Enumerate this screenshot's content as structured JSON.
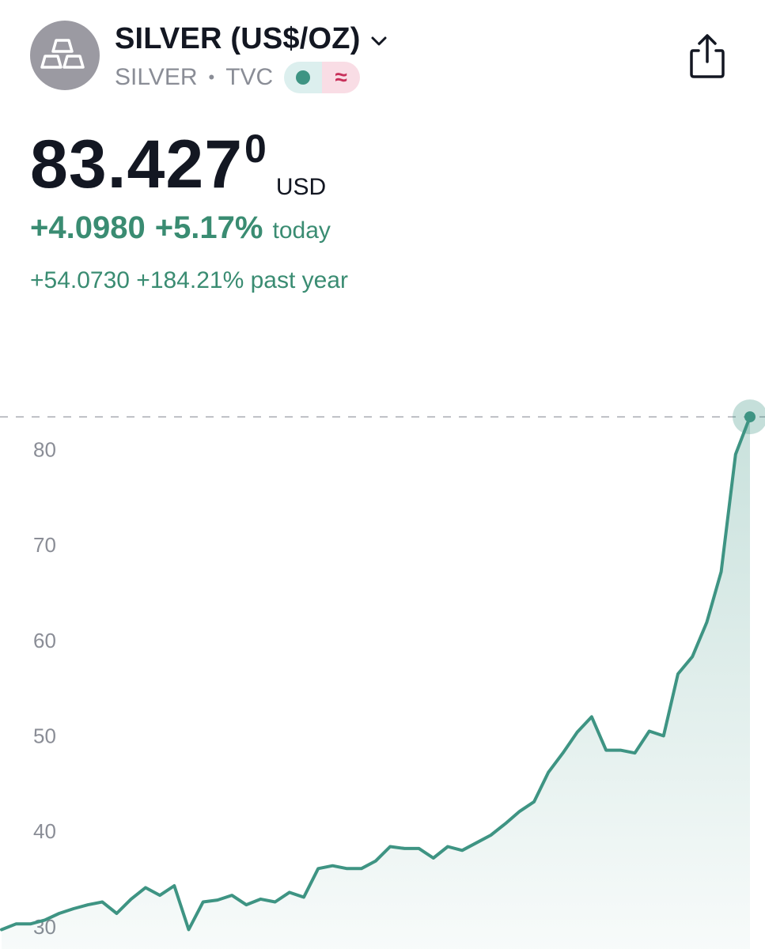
{
  "header": {
    "symbol_title": "SILVER (US$/OZ)",
    "ticker": "SILVER",
    "separator": "•",
    "exchange": "TVC",
    "wave_symbol": "≈"
  },
  "price": {
    "value": "83.427",
    "superscript": "0",
    "currency": "USD"
  },
  "today_change": {
    "absolute": "+4.0980",
    "percent": "+5.17%",
    "label": "today"
  },
  "year_change": {
    "text": "+54.0730 +184.21% past year"
  },
  "colors": {
    "line": "#3e9483",
    "positive_text": "#3a8c72"
  },
  "icons": {
    "avatar": "silver-bars-icon",
    "chevron": "chevron-down-icon",
    "share": "share-icon"
  },
  "chart_data": {
    "type": "area",
    "ylim": [
      28.5,
      86.5
    ],
    "yticks": [
      30,
      40,
      50,
      60,
      70,
      80
    ],
    "tick_labels": [
      "30",
      "40",
      "50",
      "60",
      "70",
      "80"
    ],
    "current_value": 83.427,
    "grid": false,
    "values": [
      29.7,
      30.3,
      30.3,
      30.7,
      31.4,
      31.9,
      32.3,
      32.6,
      31.4,
      32.9,
      34.1,
      33.3,
      34.3,
      29.7,
      32.6,
      32.8,
      33.3,
      32.3,
      32.9,
      32.6,
      33.6,
      33.1,
      36.1,
      36.4,
      36.1,
      36.1,
      36.9,
      38.4,
      38.2,
      38.2,
      37.2,
      38.4,
      38.0,
      38.8,
      39.6,
      40.8,
      42.1,
      43.1,
      46.2,
      48.2,
      50.4,
      52.0,
      48.5,
      48.5,
      48.2,
      50.5,
      50.0,
      56.5,
      58.3,
      61.9,
      67.2,
      79.5,
      83.427
    ]
  }
}
